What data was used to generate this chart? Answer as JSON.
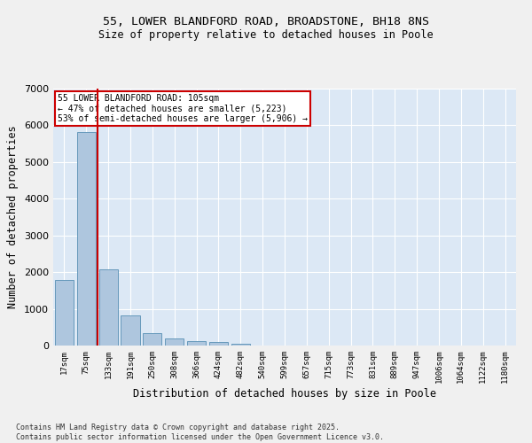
{
  "title_line1": "55, LOWER BLANDFORD ROAD, BROADSTONE, BH18 8NS",
  "title_line2": "Size of property relative to detached houses in Poole",
  "xlabel": "Distribution of detached houses by size in Poole",
  "ylabel": "Number of detached properties",
  "categories": [
    "17sqm",
    "75sqm",
    "133sqm",
    "191sqm",
    "250sqm",
    "308sqm",
    "366sqm",
    "424sqm",
    "482sqm",
    "540sqm",
    "599sqm",
    "657sqm",
    "715sqm",
    "773sqm",
    "831sqm",
    "889sqm",
    "947sqm",
    "1006sqm",
    "1064sqm",
    "1122sqm",
    "1180sqm"
  ],
  "values": [
    1780,
    5820,
    2080,
    820,
    340,
    185,
    110,
    90,
    60,
    0,
    0,
    0,
    0,
    0,
    0,
    0,
    0,
    0,
    0,
    0,
    0
  ],
  "bar_color": "#aec6de",
  "bar_edge_color": "#6699bb",
  "background_color": "#dce8f5",
  "grid_color": "#ffffff",
  "fig_background": "#f0f0f0",
  "annotation_box_color": "#cc0000",
  "annotation_text_line1": "55 LOWER BLANDFORD ROAD: 105sqm",
  "annotation_text_line2": "← 47% of detached houses are smaller (5,223)",
  "annotation_text_line3": "53% of semi-detached houses are larger (5,906) →",
  "vline_x_index": 1.5,
  "vline_color": "#cc0000",
  "ylim": [
    0,
    7000
  ],
  "yticks": [
    0,
    1000,
    2000,
    3000,
    4000,
    5000,
    6000,
    7000
  ],
  "footer_line1": "Contains HM Land Registry data © Crown copyright and database right 2025.",
  "footer_line2": "Contains public sector information licensed under the Open Government Licence v3.0."
}
